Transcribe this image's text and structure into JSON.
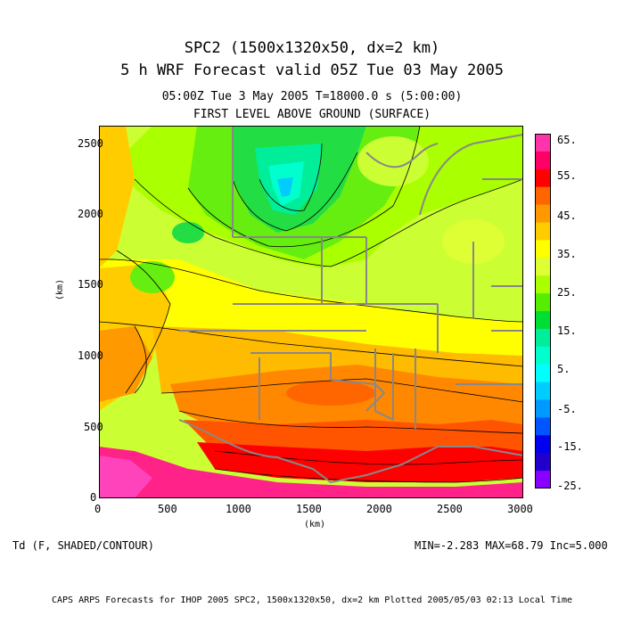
{
  "title": {
    "line1": "SPC2 (1500x1320x50, dx=2 km)",
    "line2": "5 h WRF Forecast valid 05Z Tue 03 May 2005",
    "line3": "05:00Z Tue  3 May 2005     T=18000.0 s (5:00:00)",
    "line4": "FIRST LEVEL ABOVE GROUND (SURFACE)"
  },
  "axes": {
    "xlabel": "(km)",
    "ylabel": "(km)",
    "xticks": [
      "0",
      "500",
      "1000",
      "1500",
      "2000",
      "2500",
      "3000"
    ],
    "yticks": [
      "0",
      "500",
      "1000",
      "1500",
      "2000",
      "2500"
    ],
    "xlim": [
      0,
      3000
    ],
    "ylim": [
      0,
      2640
    ]
  },
  "colorbar": {
    "labels": [
      "65.",
      "55.",
      "45.",
      "35.",
      "25.",
      "15.",
      "5.",
      "-5.",
      "-15.",
      "-25."
    ],
    "colors": [
      "#ff33aa",
      "#ff0066",
      "#ff0000",
      "#ff6600",
      "#ff9900",
      "#ffcc00",
      "#ffff00",
      "#ddff33",
      "#aaff00",
      "#55ee00",
      "#00dd33",
      "#00ee99",
      "#00ffcc",
      "#00ffff",
      "#00ccff",
      "#0099ff",
      "#0055ff",
      "#0000ee",
      "#2200cc",
      "#8800ff"
    ]
  },
  "field_label": "Td (F, SHADED/CONTOUR)",
  "stats": "MIN=-2.283 MAX=68.79 Inc=5.000",
  "footer": "CAPS ARPS Forecasts for IHOP 2005   SPC2, 1500x1320x50, dx=2 km   Plotted 2005/05/03 02:13 Local Time"
}
